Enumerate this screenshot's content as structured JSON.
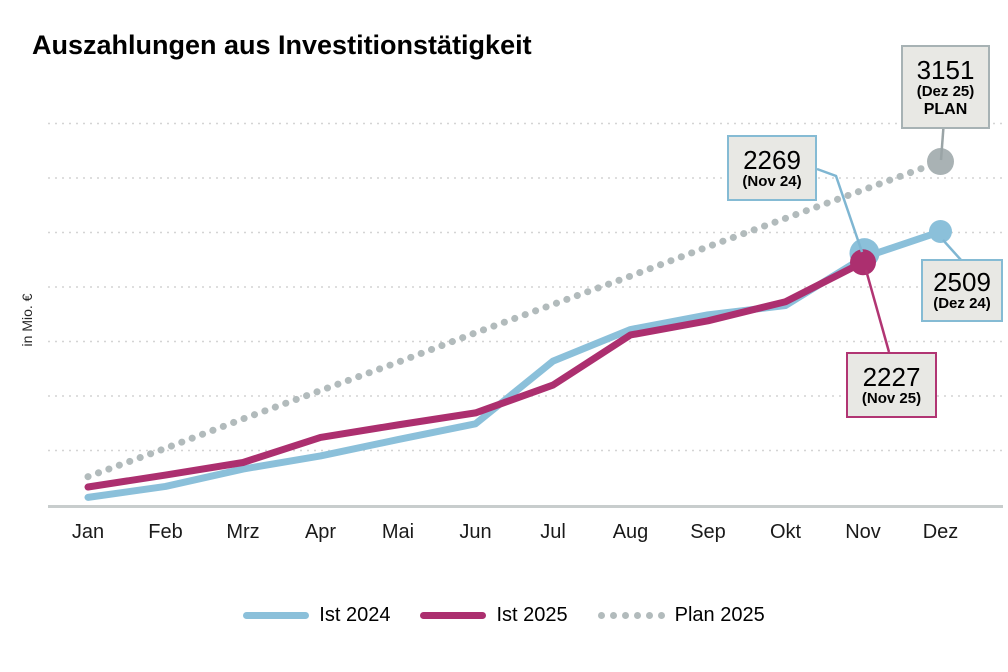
{
  "title": "Auszahlungen aus Investitionstätigkeit",
  "y_axis_label": "in Mio. €",
  "chart_data": {
    "type": "line",
    "categories": [
      "Jan",
      "Feb",
      "Mrz",
      "Apr",
      "Mai",
      "Jun",
      "Jul",
      "Aug",
      "Sep",
      "Okt",
      "Nov",
      "Dez"
    ],
    "series": [
      {
        "name": "Ist 2024",
        "style": "solid",
        "color": "#8bc0da",
        "values": [
          70,
          170,
          330,
          450,
          600,
          745,
          1320,
          1610,
          1745,
          1830,
          2269,
          2509
        ]
      },
      {
        "name": "Ist 2025",
        "style": "solid",
        "color": "#ac2f6f",
        "values": [
          165,
          275,
          390,
          620,
          735,
          845,
          1100,
          1560,
          1690,
          1865,
          2227
        ]
      },
      {
        "name": "Plan 2025",
        "style": "dotted",
        "color": "#b2bbbc",
        "marker_color": "#a9b2b4",
        "values": [
          260,
          520,
          790,
          1050,
          1310,
          1580,
          1840,
          2100,
          2370,
          2630,
          2890,
          3151
        ]
      }
    ],
    "xlabel": "",
    "ylabel": "in Mio. €",
    "ylim": [
      0,
      3500
    ],
    "gridline_step": 500,
    "grid": true,
    "legend_position": "bottom",
    "y_tick_labels_shown": false
  },
  "annotations": [
    {
      "value": "3151",
      "period": "(Dez 25)",
      "tag": "PLAN",
      "series": "Plan 2025",
      "month": "Dez",
      "border_color": "#a7b2b4"
    },
    {
      "value": "2269",
      "period": "(Nov 24)",
      "tag": "",
      "series": "Ist 2024",
      "month": "Nov",
      "border_color": "#85bbd4"
    },
    {
      "value": "2509",
      "period": "(Dez 24)",
      "tag": "",
      "series": "Ist 2024",
      "month": "Dez",
      "border_color": "#85bbd4"
    },
    {
      "value": "2227",
      "period": "(Nov 25)",
      "tag": "",
      "series": "Ist 2025",
      "month": "Nov",
      "border_color": "#b13573"
    }
  ],
  "colors": {
    "gridline": "#d4d4d4",
    "axis_line": "#c8cdcd",
    "annotation_fill": "#e8e8e4",
    "text": "#1a1a1a"
  }
}
